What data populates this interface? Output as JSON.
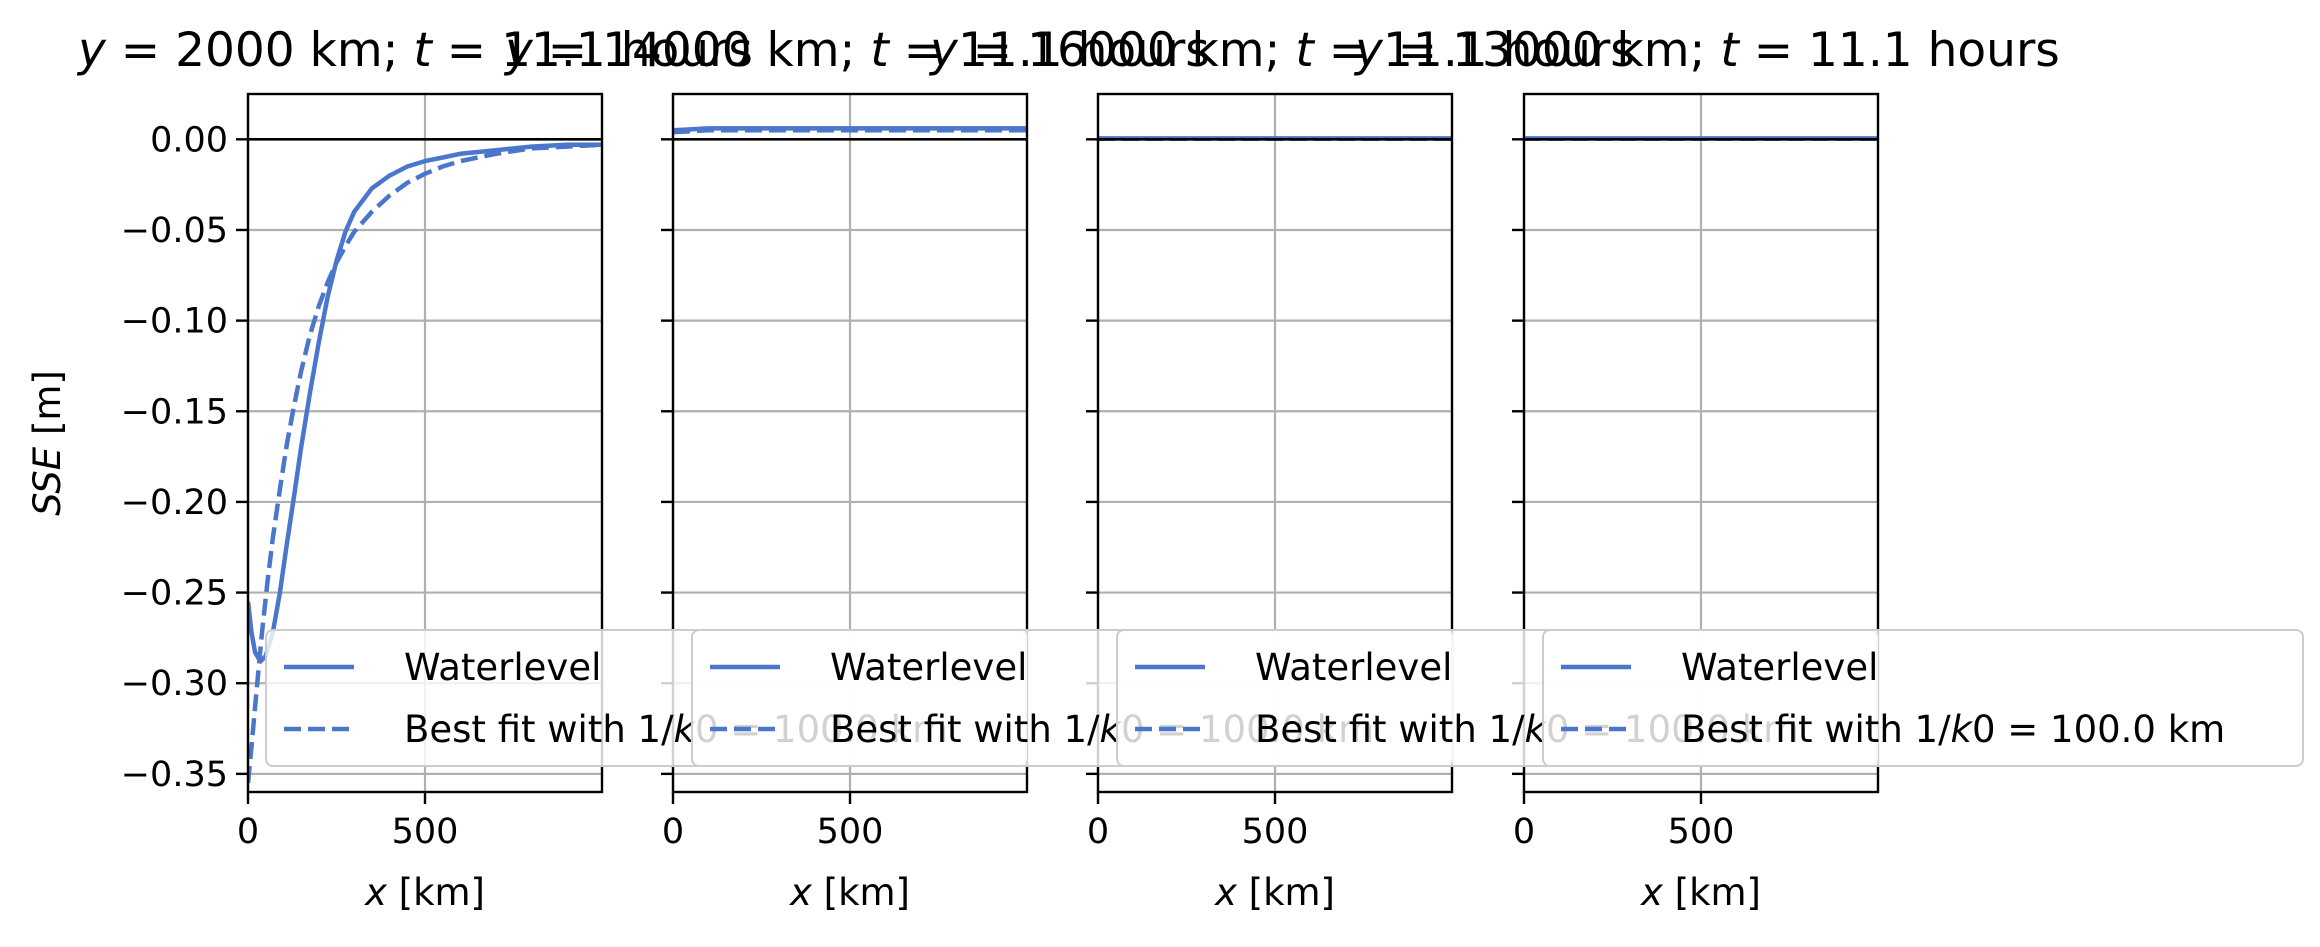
{
  "figure": {
    "background": "#ffffff"
  },
  "chart_data": [
    {
      "type": "line",
      "title": "y = 2000 km; t = 11.1 hours",
      "title_parts": {
        "lhs": "y",
        "mid": " = 2000 km; ",
        "lhs2": "t",
        "rest": " = 11.1 hours"
      },
      "xlabel_var": "x",
      "xlabel_unit": " [km]",
      "ylabel_var": "SSE",
      "ylabel_unit": " [m]",
      "xlim": [
        0,
        1000
      ],
      "ylim": [
        -0.36,
        0.025
      ],
      "xticks": [
        0,
        500
      ],
      "xtick_labels": [
        "0",
        "500"
      ],
      "yticks": [
        0.0,
        -0.05,
        -0.1,
        -0.15,
        -0.2,
        -0.25,
        -0.3,
        -0.35
      ],
      "ytick_labels": [
        "0.00",
        "−0.05",
        "−0.10",
        "−0.15",
        "−0.20",
        "−0.25",
        "−0.30",
        "−0.35"
      ],
      "show_ytick_labels": true,
      "grid": true,
      "series": [
        {
          "name": "Waterlevel",
          "style": "solid",
          "color": "#4a76cc",
          "x": [
            0,
            10,
            20,
            35,
            50,
            70,
            90,
            110,
            130,
            150,
            175,
            200,
            225,
            250,
            275,
            300,
            350,
            400,
            450,
            500,
            550,
            600,
            700,
            800,
            900,
            1000
          ],
          "y": [
            -0.255,
            -0.272,
            -0.283,
            -0.288,
            -0.285,
            -0.272,
            -0.25,
            -0.223,
            -0.197,
            -0.17,
            -0.14,
            -0.112,
            -0.087,
            -0.067,
            -0.051,
            -0.04,
            -0.027,
            -0.02,
            -0.015,
            -0.012,
            -0.01,
            -0.008,
            -0.006,
            -0.004,
            -0.003,
            -0.003
          ]
        },
        {
          "name": "Best fit with 1/k0 = 100.0 km",
          "style": "dashed",
          "color": "#4a76cc",
          "x": [
            0,
            10,
            20,
            30,
            40,
            55,
            70,
            90,
            110,
            130,
            150,
            175,
            200,
            225,
            250,
            275,
            300,
            350,
            400,
            450,
            500,
            550,
            600,
            700,
            800,
            900,
            1000
          ],
          "y": [
            -0.355,
            -0.335,
            -0.313,
            -0.292,
            -0.271,
            -0.244,
            -0.22,
            -0.193,
            -0.168,
            -0.147,
            -0.128,
            -0.108,
            -0.092,
            -0.079,
            -0.068,
            -0.059,
            -0.051,
            -0.04,
            -0.031,
            -0.024,
            -0.019,
            -0.015,
            -0.012,
            -0.008,
            -0.005,
            -0.004,
            -0.003
          ]
        }
      ],
      "zero_line": true,
      "legend": {
        "location": "lower-right",
        "entries": [
          "Waterlevel",
          "Best fit with 1/k0 = 100.0 km"
        ]
      }
    },
    {
      "type": "line",
      "title": "y = 14000 km; t = 11.1 hours",
      "title_parts": {
        "lhs": "y",
        "mid": " = 14000 km; ",
        "lhs2": "t",
        "rest": " = 11.1 hours"
      },
      "xlabel_var": "x",
      "xlabel_unit": " [km]",
      "xlim": [
        0,
        1000
      ],
      "ylim": [
        -0.36,
        0.025
      ],
      "xticks": [
        0,
        500
      ],
      "xtick_labels": [
        "0",
        "500"
      ],
      "yticks": [
        0.0,
        -0.05,
        -0.1,
        -0.15,
        -0.2,
        -0.25,
        -0.3,
        -0.35
      ],
      "show_ytick_labels": false,
      "grid": true,
      "series": [
        {
          "name": "Waterlevel",
          "style": "solid",
          "color": "#4a76cc",
          "x": [
            0,
            100,
            200,
            400,
            600,
            800,
            1000
          ],
          "y": [
            0.005,
            0.006,
            0.006,
            0.006,
            0.006,
            0.006,
            0.006
          ]
        },
        {
          "name": "Best fit with 1/k0 = 100.0 km",
          "style": "dashed",
          "color": "#4a76cc",
          "x": [
            0,
            100,
            200,
            400,
            600,
            800,
            1000
          ],
          "y": [
            0.004,
            0.005,
            0.005,
            0.005,
            0.005,
            0.005,
            0.005
          ]
        }
      ],
      "zero_line": true,
      "legend": {
        "location": "lower-right",
        "entries": [
          "Waterlevel",
          "Best fit with 1/k0 = 100.0 km"
        ]
      }
    },
    {
      "type": "line",
      "title": "y = 16000 km; t = 11.1 hours",
      "title_parts": {
        "lhs": "y",
        "mid": " = 16000 km; ",
        "lhs2": "t",
        "rest": " = 11.1 hours"
      },
      "xlabel_var": "x",
      "xlabel_unit": " [km]",
      "xlim": [
        0,
        1000
      ],
      "ylim": [
        -0.36,
        0.025
      ],
      "xticks": [
        0,
        500
      ],
      "xtick_labels": [
        "0",
        "500"
      ],
      "yticks": [
        0.0,
        -0.05,
        -0.1,
        -0.15,
        -0.2,
        -0.25,
        -0.3,
        -0.35
      ],
      "show_ytick_labels": false,
      "grid": true,
      "series": [
        {
          "name": "Waterlevel",
          "style": "solid",
          "color": "#4a76cc",
          "x": [
            0,
            500,
            1000
          ],
          "y": [
            0.0005,
            0.0005,
            0.0005
          ]
        },
        {
          "name": "Best fit with 1/k0 = 100.0 km",
          "style": "dashed",
          "color": "#4a76cc",
          "x": [
            0,
            500,
            1000
          ],
          "y": [
            0.0003,
            0.0003,
            0.0003
          ]
        }
      ],
      "zero_line": true,
      "legend": {
        "location": "lower-right",
        "entries": [
          "Waterlevel",
          "Best fit with 1/k0 = 100.0 km"
        ]
      }
    },
    {
      "type": "line",
      "title": "y = 13000 km; t = 11.1 hours",
      "title_parts": {
        "lhs": "y",
        "mid": " = 13000 km; ",
        "lhs2": "t",
        "rest": " = 11.1 hours"
      },
      "xlabel_var": "x",
      "xlabel_unit": " [km]",
      "xlim": [
        0,
        1000
      ],
      "ylim": [
        -0.36,
        0.025
      ],
      "xticks": [
        0,
        500
      ],
      "xtick_labels": [
        "0",
        "500"
      ],
      "yticks": [
        0.0,
        -0.05,
        -0.1,
        -0.15,
        -0.2,
        -0.25,
        -0.3,
        -0.35
      ],
      "show_ytick_labels": false,
      "grid": true,
      "series": [
        {
          "name": "Waterlevel",
          "style": "solid",
          "color": "#4a76cc",
          "x": [
            0,
            500,
            1000
          ],
          "y": [
            0.0005,
            0.0005,
            0.0005
          ]
        },
        {
          "name": "Best fit with 1/k0 = 100.0 km",
          "style": "dashed",
          "color": "#4a76cc",
          "x": [
            0,
            500,
            1000
          ],
          "y": [
            0.0003,
            0.0003,
            0.0003
          ]
        }
      ],
      "zero_line": true,
      "legend": {
        "location": "lower-right",
        "entries": [
          "Waterlevel",
          "Best fit with 1/k0 = 100.0 km"
        ]
      }
    }
  ],
  "legend_parts": {
    "prefix": "Best fit with 1/",
    "k": "k",
    "suffix": "0 = 100.0 km"
  }
}
